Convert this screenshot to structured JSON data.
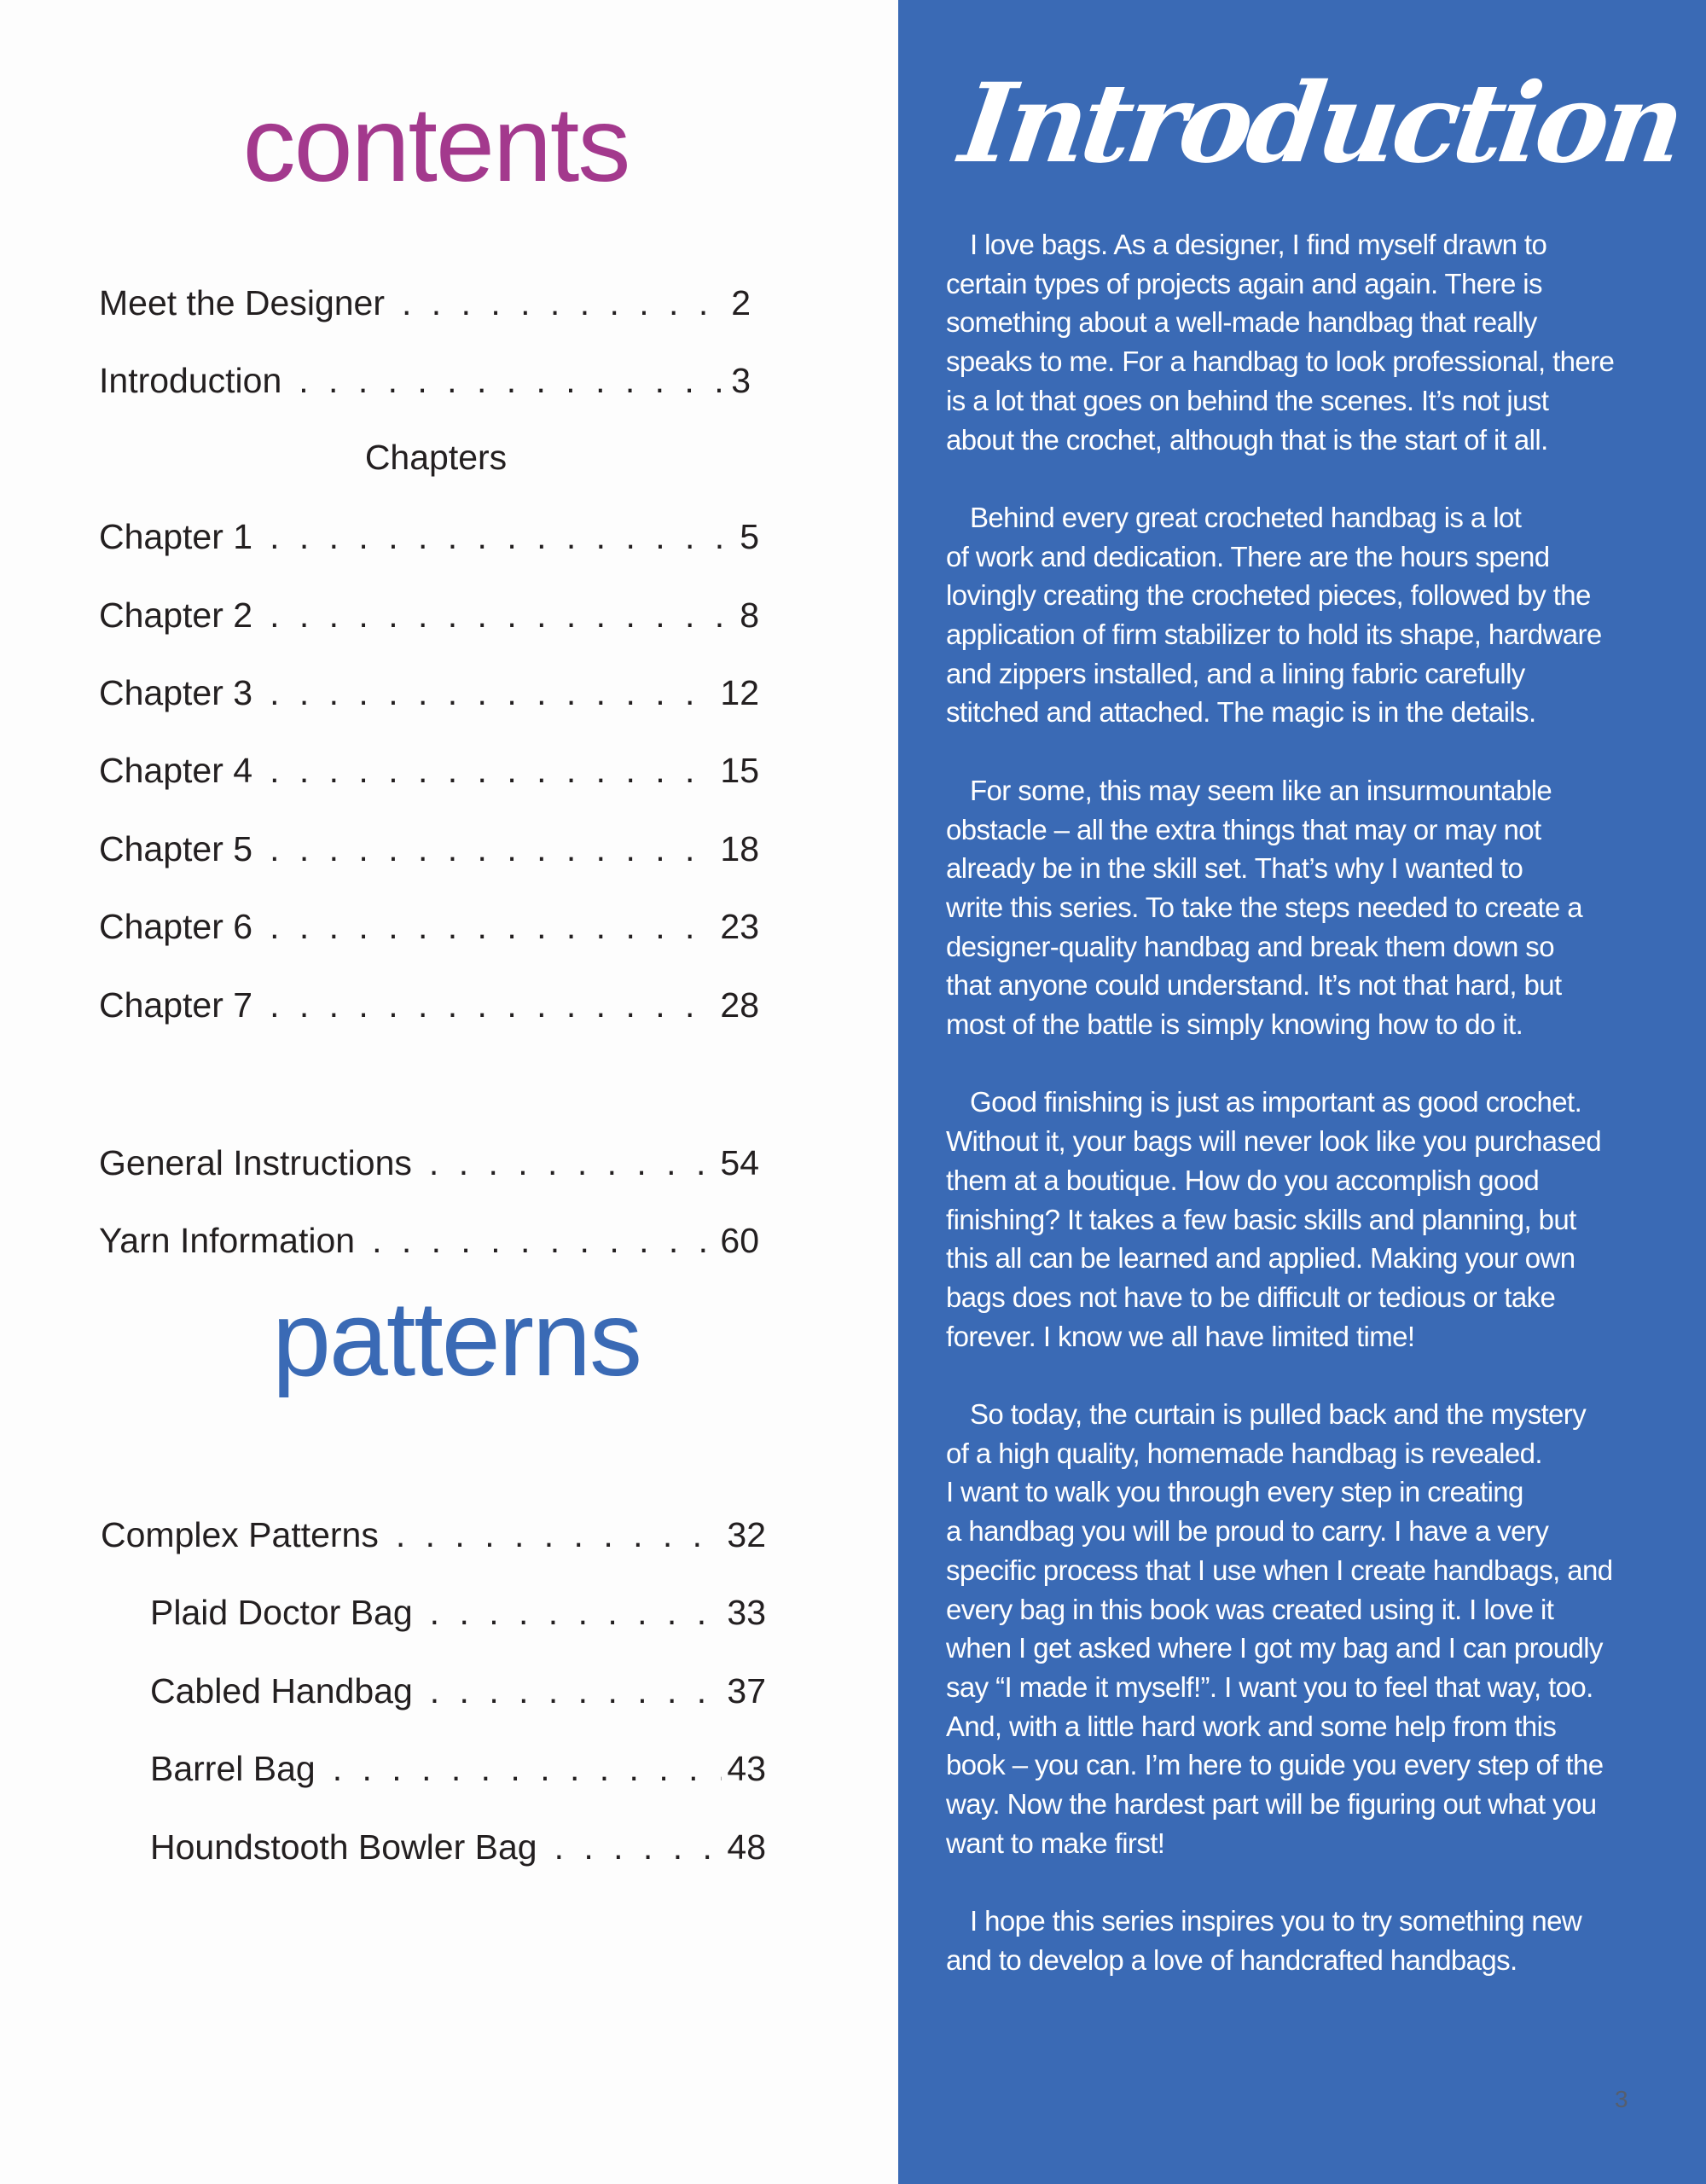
{
  "contents": {
    "title": "contents",
    "items": [
      {
        "label": "Meet the Designer",
        "page": "2"
      },
      {
        "label": "Introduction",
        "page": "3"
      }
    ],
    "chapters_heading": "Chapters",
    "chapters": [
      {
        "label": "Chapter 1",
        "page": "5"
      },
      {
        "label": "Chapter 2",
        "page": "8"
      },
      {
        "label": "Chapter 3",
        "page": "12"
      },
      {
        "label": "Chapter 4",
        "page": "15"
      },
      {
        "label": "Chapter 5",
        "page": "18"
      },
      {
        "label": "Chapter 6",
        "page": "23"
      },
      {
        "label": "Chapter 7",
        "page": "28"
      }
    ],
    "appendix": [
      {
        "label": "General Instructions",
        "page": "54"
      },
      {
        "label": "Yarn Information",
        "page": "60"
      }
    ]
  },
  "patterns": {
    "title": "patterns",
    "main": {
      "label": "Complex Patterns",
      "page": "32"
    },
    "items": [
      {
        "label": "Plaid Doctor Bag",
        "page": "33"
      },
      {
        "label": "Cabled Handbag",
        "page": "37"
      },
      {
        "label": "Barrel Bag",
        "page": "43"
      },
      {
        "label": "Houndstooth Bowler Bag",
        "page": "48"
      }
    ]
  },
  "introduction": {
    "title": "Introduction",
    "paragraphs": [
      [
        "I love bags. As a designer, I find myself drawn to",
        "certain types of projects again and again. There is",
        "something about a well-made handbag that really",
        "speaks to me. For a handbag to look professional, there",
        "is a lot that goes on behind the scenes. It’s not just",
        "about the crochet, although that is the start of it all."
      ],
      [
        "Behind every great crocheted handbag is a lot",
        "of work and dedication. There are the hours spend",
        "lovingly creating the crocheted pieces, followed by the",
        "application of firm stabilizer to hold its shape, hardware",
        "and zippers installed, and a lining fabric carefully",
        "stitched and attached. The magic is in the details."
      ],
      [
        "For some, this may seem like an insurmountable",
        "obstacle – all the extra things that may or may not",
        "already be in the skill set. That’s why I wanted to",
        "write this series. To take the steps needed to create a",
        "designer-quality handbag and break them down so",
        "that anyone could understand. It’s not that hard, but",
        "most of the battle is simply knowing how to do it."
      ],
      [
        "Good finishing is just as important as good crochet.",
        "Without it, your bags will never look like you purchased",
        "them at a boutique. How do you accomplish good",
        "finishing? It takes a few basic skills and planning, but",
        "this all can be learned and applied. Making your own",
        "bags does not have to be difficult or tedious or take",
        "forever. I know we all have limited time!"
      ],
      [
        "So today, the curtain is pulled back and the mystery",
        "of a high quality, homemade handbag is revealed.",
        "I want to walk you through every step in creating",
        "a handbag you will be proud to carry. I have a very",
        "specific process that I use when I create handbags, and",
        "every bag in this book was created using it. I love it",
        "when I get asked where I got my bag and I can proudly",
        "say “I made it myself!”. I want you to feel that way, too.",
        "And, with a little hard work and some help from this",
        "book – you can. I’m here to guide you every step of the",
        "way. Now the hardest part will be figuring out what you",
        "want to make first!"
      ],
      [
        "I hope this series inspires you to try something new",
        "and to develop a love of handcrafted handbags."
      ]
    ]
  },
  "page_number": "3",
  "colors": {
    "contents_title": "#a3398d",
    "patterns_title": "#3a6ab5",
    "intro_panel": "#3a6ab5"
  }
}
